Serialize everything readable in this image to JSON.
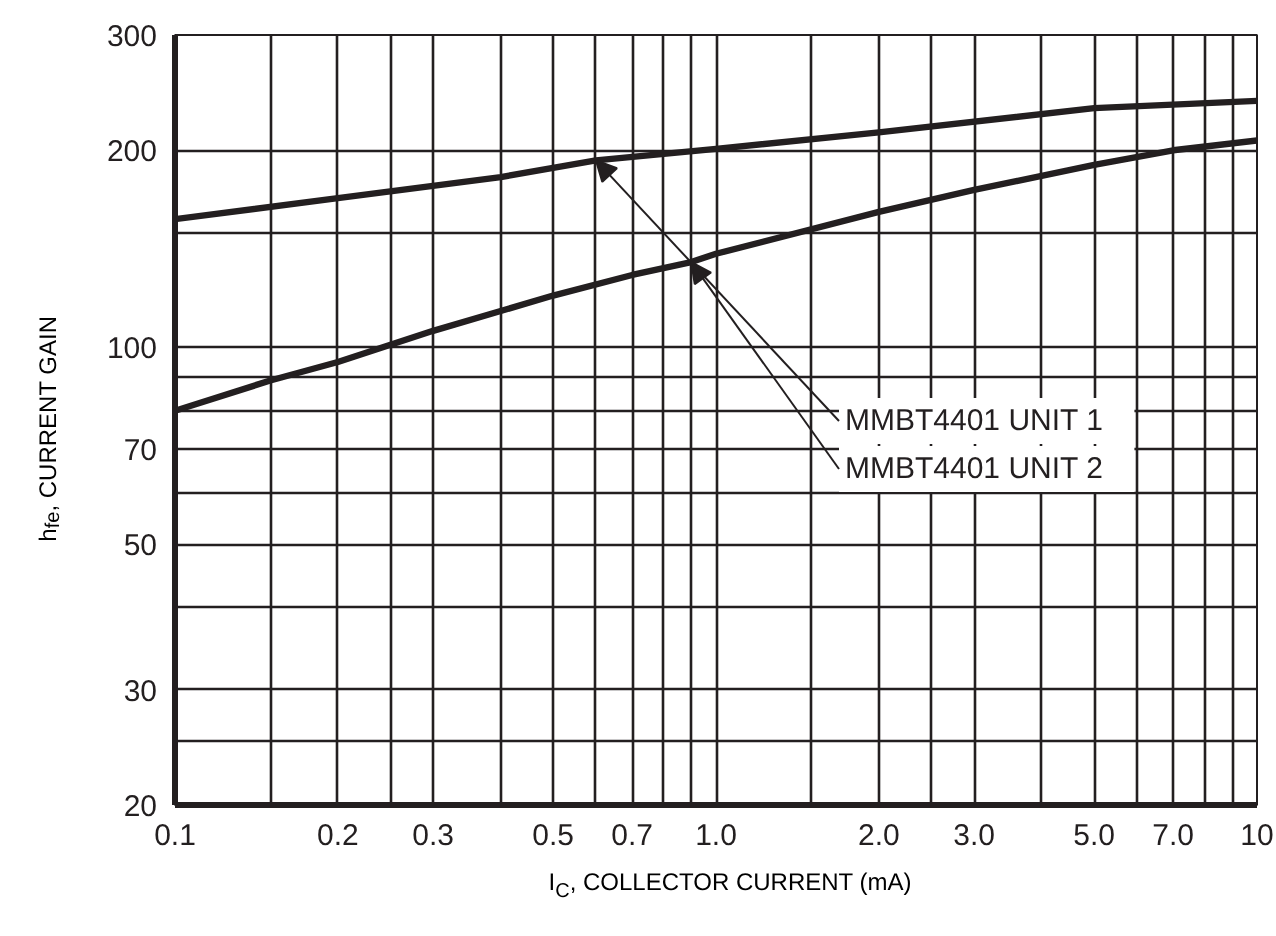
{
  "chart_data": {
    "type": "line",
    "xlabel": "I$_{C}$, COLLECTOR CURRENT (mA)",
    "ylabel": "h$_{fe}$, CURRENT   GAIN",
    "log": "xy",
    "xlim": [
      0.1,
      10
    ],
    "ylim": [
      20,
      300
    ],
    "xticks": [
      0.1,
      {
        "value": 0.15,
        "label": null
      },
      0.2,
      {
        "value": 0.25,
        "label": null
      },
      0.3,
      {
        "value": 0.4,
        "label": null
      },
      0.5,
      {
        "value": 0.6,
        "label": null
      },
      0.7,
      {
        "value": 0.8,
        "label": null
      },
      {
        "value": 0.9,
        "label": null
      },
      {
        "value": 1,
        "label": "1.0"
      },
      {
        "value": 1.5,
        "label": null
      },
      {
        "value": 2,
        "label": "2.0"
      },
      {
        "value": 2.5,
        "label": null
      },
      {
        "value": 3,
        "label": "3.0"
      },
      {
        "value": 4,
        "label": null
      },
      {
        "value": 5,
        "label": "5.0"
      },
      {
        "value": 6,
        "label": null
      },
      {
        "value": 7,
        "label": "7.0"
      },
      {
        "value": 8,
        "label": null
      },
      {
        "value": 9,
        "label": null
      },
      10
    ],
    "yticks": [
      20,
      {
        "value": 25,
        "label": null
      },
      30,
      {
        "value": 40,
        "label": null
      },
      50,
      {
        "value": 60,
        "label": null
      },
      70,
      {
        "value": 80,
        "label": null
      },
      {
        "value": 90,
        "label": null
      },
      100,
      {
        "value": 150,
        "label": null
      },
      200,
      300
    ],
    "grid": true,
    "marker": "none",
    "line_style": "solid",
    "series": [
      {
        "color": "#231f20",
        "x": [
          0.1,
          0.2,
          0.4,
          0.6,
          1,
          2,
          5,
          10
        ],
        "values": [
          157,
          169,
          182,
          193,
          201,
          213,
          232,
          238
        ]
      },
      {
        "color": "#231f20",
        "x": [
          0.1,
          0.15,
          0.2,
          0.3,
          0.5,
          0.7,
          0.9,
          1,
          2,
          3,
          5,
          7,
          10
        ],
        "values": [
          80,
          89,
          95,
          106,
          120,
          129,
          135,
          139,
          161,
          174,
          190,
          200,
          207
        ]
      }
    ],
    "annotations": [
      {
        "text": "MMBT4401    UNIT 1",
        "x": 0.6,
        "y": 193
      },
      {
        "text": "MMBT4401    UNIT 2",
        "x": 0.9,
        "y": 135
      }
    ]
  }
}
